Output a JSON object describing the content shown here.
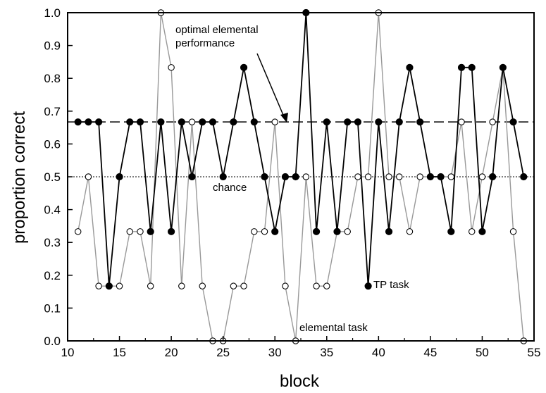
{
  "chart_data": {
    "type": "line",
    "xlabel": "block",
    "ylabel": "proportion correct",
    "xlim": [
      10,
      55
    ],
    "ylim": [
      0.0,
      1.0
    ],
    "xticks": [
      "10",
      "15",
      "20",
      "25",
      "30",
      "35",
      "40",
      "45",
      "50",
      "55"
    ],
    "yticks": [
      "0.0",
      "0.1",
      "0.2",
      "0.3",
      "0.4",
      "0.5",
      "0.6",
      "0.7",
      "0.8",
      "0.9",
      "1.0"
    ],
    "grid": false,
    "series": [
      {
        "name": "TP task",
        "color": "#000000",
        "marker": "filled-circle",
        "x": [
          11,
          12,
          13,
          14,
          15,
          16,
          17,
          18,
          19,
          20,
          21,
          22,
          23,
          24,
          25,
          26,
          27,
          28,
          29,
          30,
          31,
          32,
          33,
          34,
          35,
          36,
          37,
          38,
          39,
          40,
          41,
          42,
          43,
          44,
          45,
          46,
          47,
          48,
          49,
          50,
          51,
          52,
          53,
          54
        ],
        "y": [
          0.667,
          0.667,
          0.667,
          0.167,
          0.5,
          0.667,
          0.667,
          0.333,
          0.667,
          0.333,
          0.667,
          0.5,
          0.667,
          0.667,
          0.5,
          0.667,
          0.833,
          0.667,
          0.5,
          0.333,
          0.5,
          0.5,
          1.0,
          0.333,
          0.667,
          0.333,
          0.667,
          0.667,
          0.167,
          0.667,
          0.333,
          0.667,
          0.833,
          0.667,
          0.5,
          0.5,
          0.333,
          0.833,
          0.833,
          0.333,
          0.5,
          0.833,
          0.667,
          0.5
        ]
      },
      {
        "name": "elemental task",
        "color": "#999999",
        "marker": "open-circle",
        "x": [
          11,
          12,
          13,
          14,
          15,
          16,
          17,
          18,
          19,
          20,
          21,
          22,
          23,
          24,
          25,
          26,
          27,
          28,
          29,
          30,
          31,
          32,
          33,
          34,
          35,
          36,
          37,
          38,
          39,
          40,
          41,
          42,
          43,
          44,
          45,
          46,
          47,
          48,
          49,
          50,
          51,
          52,
          53,
          54
        ],
        "y": [
          0.333,
          0.5,
          0.167,
          0.167,
          0.167,
          0.333,
          0.333,
          0.167,
          1.0,
          0.833,
          0.167,
          0.667,
          0.167,
          0.0,
          0.0,
          0.167,
          0.167,
          0.333,
          0.333,
          0.667,
          0.167,
          0.0,
          0.5,
          0.167,
          0.167,
          0.333,
          0.333,
          0.5,
          0.5,
          1.0,
          0.5,
          0.5,
          0.333,
          0.5,
          0.5,
          0.5,
          0.5,
          0.667,
          0.333,
          0.5,
          0.667,
          0.833,
          0.333,
          0.0
        ]
      }
    ],
    "reference_lines": [
      {
        "label": "optimal elemental performance",
        "y": 0.667,
        "style": "dashed"
      },
      {
        "label": "chance",
        "y": 0.5,
        "style": "dotted"
      }
    ],
    "annotations": {
      "optimal_line1": "optimal elemental",
      "optimal_line2": "performance",
      "chance": "chance",
      "tp_task": "TP task",
      "elemental_task": "elemental task"
    }
  }
}
